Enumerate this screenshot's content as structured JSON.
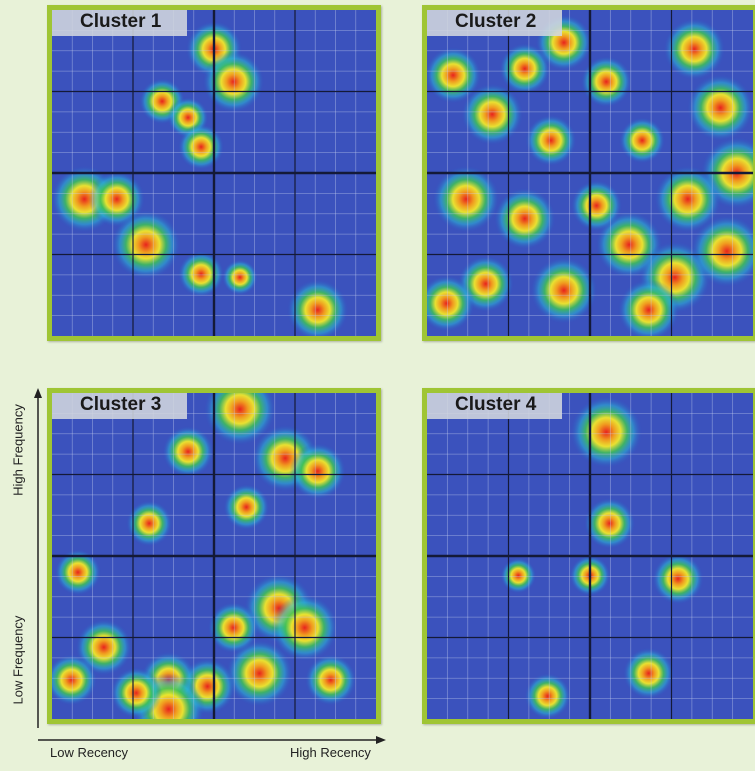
{
  "chart_data": {
    "type": "heatmap",
    "xlabel": {
      "low": "Low Recency",
      "high": "High Recency"
    },
    "ylabel": {
      "high": "High Frequency",
      "low": "Low Frequency"
    },
    "panels": [
      {
        "title": "Cluster 1",
        "hotspots": [
          {
            "x": 0.5,
            "y": 0.12,
            "i": 0.7
          },
          {
            "x": 0.56,
            "y": 0.22,
            "i": 0.8
          },
          {
            "x": 0.34,
            "y": 0.28,
            "i": 0.5
          },
          {
            "x": 0.42,
            "y": 0.33,
            "i": 0.4
          },
          {
            "x": 0.46,
            "y": 0.42,
            "i": 0.5
          },
          {
            "x": 0.1,
            "y": 0.58,
            "i": 0.9
          },
          {
            "x": 0.2,
            "y": 0.58,
            "i": 0.7
          },
          {
            "x": 0.29,
            "y": 0.72,
            "i": 0.95
          },
          {
            "x": 0.46,
            "y": 0.81,
            "i": 0.5
          },
          {
            "x": 0.58,
            "y": 0.82,
            "i": 0.3
          },
          {
            "x": 0.82,
            "y": 0.92,
            "i": 0.8
          }
        ]
      },
      {
        "title": "Cluster 2",
        "hotspots": [
          {
            "x": 0.08,
            "y": 0.2,
            "i": 0.7
          },
          {
            "x": 0.2,
            "y": 0.32,
            "i": 0.8
          },
          {
            "x": 0.3,
            "y": 0.18,
            "i": 0.6
          },
          {
            "x": 0.42,
            "y": 0.1,
            "i": 0.7
          },
          {
            "x": 0.55,
            "y": 0.22,
            "i": 0.6
          },
          {
            "x": 0.66,
            "y": 0.4,
            "i": 0.5
          },
          {
            "x": 0.82,
            "y": 0.12,
            "i": 0.8
          },
          {
            "x": 0.9,
            "y": 0.3,
            "i": 0.9
          },
          {
            "x": 0.95,
            "y": 0.5,
            "i": 1.0
          },
          {
            "x": 0.8,
            "y": 0.58,
            "i": 0.9
          },
          {
            "x": 0.62,
            "y": 0.72,
            "i": 0.9
          },
          {
            "x": 0.76,
            "y": 0.82,
            "i": 1.0
          },
          {
            "x": 0.92,
            "y": 0.74,
            "i": 1.0
          },
          {
            "x": 0.12,
            "y": 0.58,
            "i": 0.9
          },
          {
            "x": 0.3,
            "y": 0.64,
            "i": 0.8
          },
          {
            "x": 0.18,
            "y": 0.84,
            "i": 0.7
          },
          {
            "x": 0.42,
            "y": 0.86,
            "i": 0.9
          },
          {
            "x": 0.06,
            "y": 0.9,
            "i": 0.7
          },
          {
            "x": 0.52,
            "y": 0.6,
            "i": 0.6
          },
          {
            "x": 0.38,
            "y": 0.4,
            "i": 0.6
          },
          {
            "x": 0.68,
            "y": 0.92,
            "i": 0.8
          }
        ]
      },
      {
        "title": "Cluster 3",
        "hotspots": [
          {
            "x": 0.58,
            "y": 0.05,
            "i": 1.0
          },
          {
            "x": 0.42,
            "y": 0.18,
            "i": 0.6
          },
          {
            "x": 0.72,
            "y": 0.2,
            "i": 0.9
          },
          {
            "x": 0.82,
            "y": 0.24,
            "i": 0.7
          },
          {
            "x": 0.6,
            "y": 0.35,
            "i": 0.5
          },
          {
            "x": 0.3,
            "y": 0.4,
            "i": 0.5
          },
          {
            "x": 0.08,
            "y": 0.55,
            "i": 0.5
          },
          {
            "x": 0.7,
            "y": 0.66,
            "i": 0.95
          },
          {
            "x": 0.78,
            "y": 0.72,
            "i": 0.9
          },
          {
            "x": 0.64,
            "y": 0.86,
            "i": 0.9
          },
          {
            "x": 0.48,
            "y": 0.9,
            "i": 0.7
          },
          {
            "x": 0.36,
            "y": 0.88,
            "i": 0.7
          },
          {
            "x": 0.16,
            "y": 0.78,
            "i": 0.7
          },
          {
            "x": 0.06,
            "y": 0.88,
            "i": 0.6
          },
          {
            "x": 0.36,
            "y": 0.97,
            "i": 1.0
          },
          {
            "x": 0.26,
            "y": 0.92,
            "i": 0.6
          },
          {
            "x": 0.86,
            "y": 0.88,
            "i": 0.6
          },
          {
            "x": 0.56,
            "y": 0.72,
            "i": 0.6
          }
        ]
      },
      {
        "title": "Cluster 4",
        "hotspots": [
          {
            "x": 0.55,
            "y": 0.12,
            "i": 1.0
          },
          {
            "x": 0.56,
            "y": 0.4,
            "i": 0.6
          },
          {
            "x": 0.28,
            "y": 0.56,
            "i": 0.3
          },
          {
            "x": 0.5,
            "y": 0.56,
            "i": 0.4
          },
          {
            "x": 0.77,
            "y": 0.57,
            "i": 0.6
          },
          {
            "x": 0.37,
            "y": 0.93,
            "i": 0.5
          },
          {
            "x": 0.68,
            "y": 0.86,
            "i": 0.6
          }
        ]
      }
    ]
  }
}
